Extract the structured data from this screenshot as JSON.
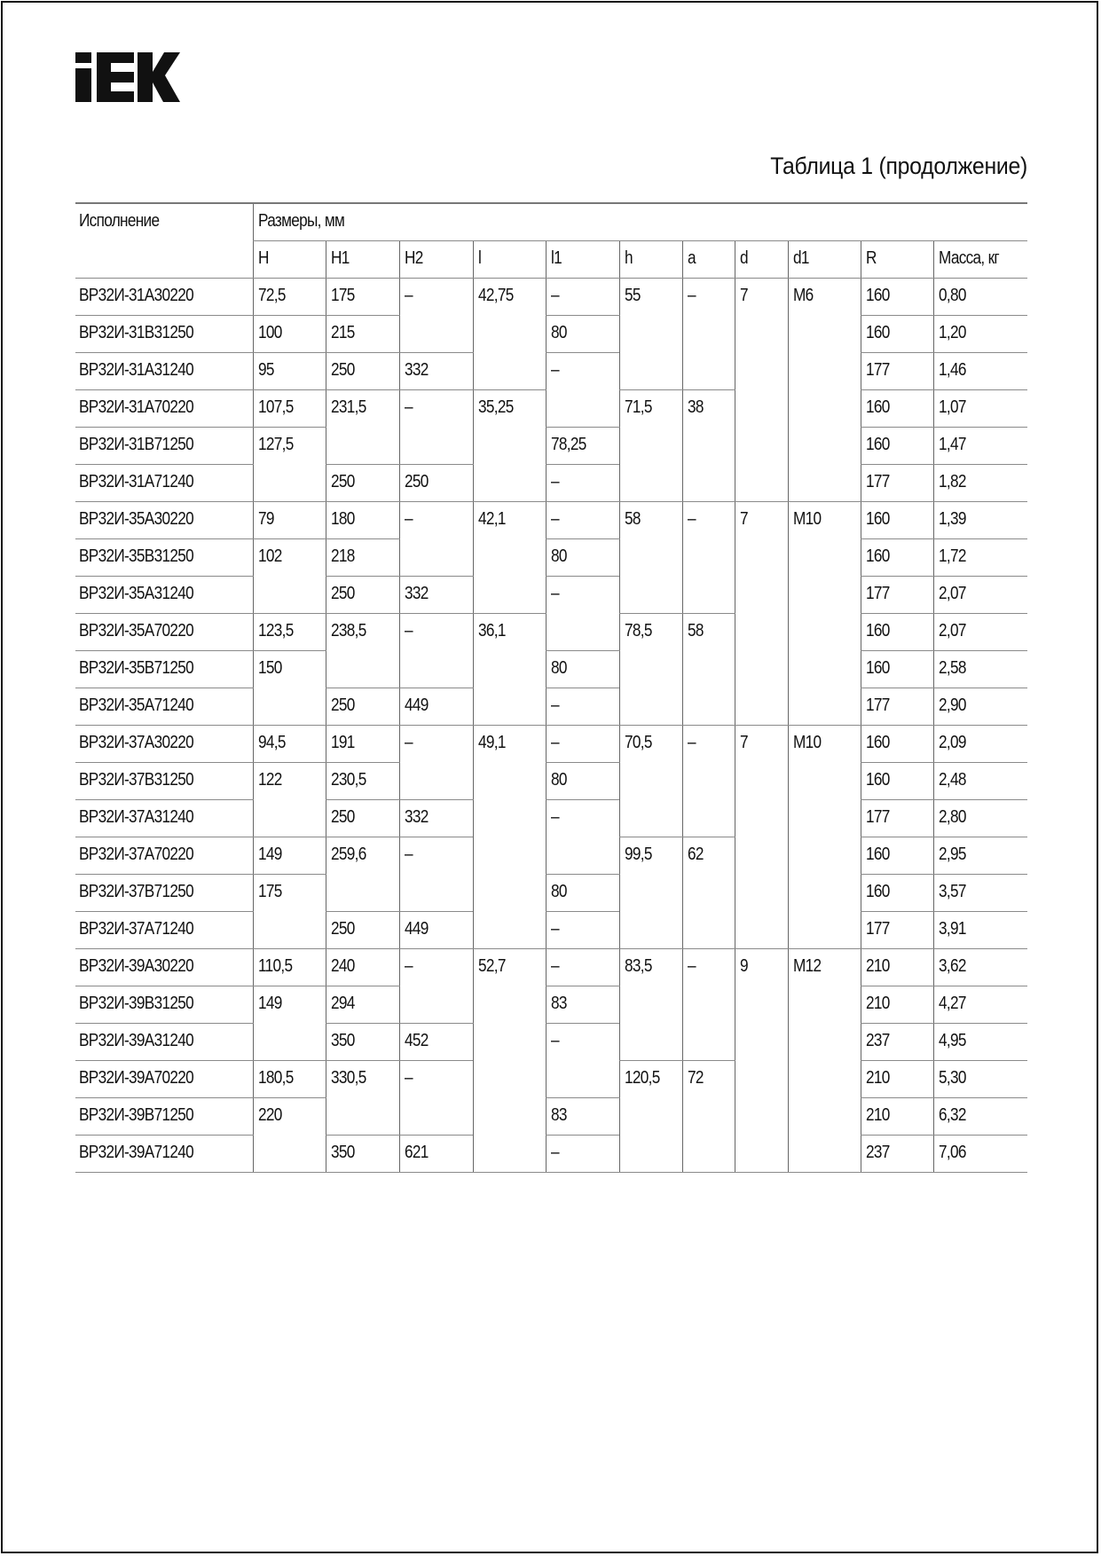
{
  "logo": {
    "text": "IEK"
  },
  "title": "Таблица 1 (продолжение)",
  "table": {
    "header_model": "Исполнение",
    "header_group": "Размеры, мм",
    "columns": [
      "H",
      "H1",
      "H2",
      "l",
      "l1",
      "h",
      "a",
      "d",
      "d1",
      "R",
      "Масса, кг"
    ],
    "rows": [
      [
        "ВР32И-31А30220",
        [
          "72,5",
          1
        ],
        [
          "175",
          1
        ],
        [
          "–",
          2
        ],
        [
          "42,75",
          3
        ],
        [
          "–",
          1
        ],
        [
          "55",
          3
        ],
        [
          "–",
          3
        ],
        [
          "7",
          6
        ],
        [
          "М6",
          6
        ],
        [
          "160",
          1
        ],
        [
          "0,80",
          1
        ]
      ],
      [
        "ВР32И-31В31250",
        [
          "100",
          1
        ],
        [
          "215",
          1
        ],
        [
          "80",
          1
        ],
        [
          "160",
          1
        ],
        [
          "1,20",
          1
        ]
      ],
      [
        "ВР32И-31А31240",
        [
          "95",
          1
        ],
        [
          "250",
          1
        ],
        [
          "332",
          1
        ],
        [
          "–",
          2
        ],
        [
          "177",
          1
        ],
        [
          "1,46",
          1
        ]
      ],
      [
        "ВР32И-31А70220",
        [
          "107,5",
          1
        ],
        [
          "231,5",
          2
        ],
        [
          "–",
          2
        ],
        [
          "35,25",
          3
        ],
        [
          "71,5",
          3
        ],
        [
          "38",
          3
        ],
        [
          "160",
          1
        ],
        [
          "1,07",
          1
        ]
      ],
      [
        "ВР32И-31В71250",
        [
          "127,5",
          2
        ],
        [
          "78,25",
          1
        ],
        [
          "160",
          1
        ],
        [
          "1,47",
          1
        ]
      ],
      [
        "ВР32И-31А71240",
        [
          "250",
          1
        ],
        [
          "250",
          1
        ],
        [
          "–",
          1
        ],
        [
          "177",
          1
        ],
        [
          "1,82",
          1
        ]
      ],
      [
        "ВР32И-35А30220",
        [
          "79",
          1
        ],
        [
          "180",
          1
        ],
        [
          "–",
          2
        ],
        [
          "42,1",
          3
        ],
        [
          "–",
          1
        ],
        [
          "58",
          3
        ],
        [
          "–",
          3
        ],
        [
          "7",
          6
        ],
        [
          "М10",
          6
        ],
        [
          "160",
          1
        ],
        [
          "1,39",
          1
        ]
      ],
      [
        "ВР32И-35В31250",
        [
          "102",
          2
        ],
        [
          "218",
          1
        ],
        [
          "80",
          1
        ],
        [
          "160",
          1
        ],
        [
          "1,72",
          1
        ]
      ],
      [
        "ВР32И-35А31240",
        [
          "250",
          1
        ],
        [
          "332",
          1
        ],
        [
          "–",
          2
        ],
        [
          "177",
          1
        ],
        [
          "2,07",
          1
        ]
      ],
      [
        "ВР32И-35А70220",
        [
          "123,5",
          1
        ],
        [
          "238,5",
          2
        ],
        [
          "–",
          2
        ],
        [
          "36,1",
          3
        ],
        [
          "78,5",
          3
        ],
        [
          "58",
          3
        ],
        [
          "160",
          1
        ],
        [
          "2,07",
          1
        ]
      ],
      [
        "ВР32И-35В71250",
        [
          "150",
          2
        ],
        [
          "80",
          1
        ],
        [
          "160",
          1
        ],
        [
          "2,58",
          1
        ]
      ],
      [
        "ВР32И-35А71240",
        [
          "250",
          1
        ],
        [
          "449",
          1
        ],
        [
          "–",
          1
        ],
        [
          "177",
          1
        ],
        [
          "2,90",
          1
        ]
      ],
      [
        "ВР32И-37А30220",
        [
          "94,5",
          1
        ],
        [
          "191",
          1
        ],
        [
          "–",
          2
        ],
        [
          "49,1",
          6
        ],
        [
          "–",
          1
        ],
        [
          "70,5",
          3
        ],
        [
          "–",
          3
        ],
        [
          "7",
          6
        ],
        [
          "М10",
          6
        ],
        [
          "160",
          1
        ],
        [
          "2,09",
          1
        ]
      ],
      [
        "ВР32И-37В31250",
        [
          "122",
          2
        ],
        [
          "230,5",
          1
        ],
        [
          "80",
          1
        ],
        [
          "160",
          1
        ],
        [
          "2,48",
          1
        ]
      ],
      [
        "ВР32И-37А31240",
        [
          "250",
          1
        ],
        [
          "332",
          1
        ],
        [
          "–",
          2
        ],
        [
          "177",
          1
        ],
        [
          "2,80",
          1
        ]
      ],
      [
        "ВР32И-37А70220",
        [
          "149",
          1
        ],
        [
          "259,6",
          2
        ],
        [
          "–",
          2
        ],
        [
          "99,5",
          3
        ],
        [
          "62",
          3
        ],
        [
          "160",
          1
        ],
        [
          "2,95",
          1
        ]
      ],
      [
        "ВР32И-37В71250",
        [
          "175",
          2
        ],
        [
          "80",
          1
        ],
        [
          "160",
          1
        ],
        [
          "3,57",
          1
        ]
      ],
      [
        "ВР32И-37А71240",
        [
          "250",
          1
        ],
        [
          "449",
          1
        ],
        [
          "–",
          1
        ],
        [
          "177",
          1
        ],
        [
          "3,91",
          1
        ]
      ],
      [
        "ВР32И-39А30220",
        [
          "110,5",
          1
        ],
        [
          "240",
          1
        ],
        [
          "–",
          2
        ],
        [
          "52,7",
          6
        ],
        [
          "–",
          1
        ],
        [
          "83,5",
          3
        ],
        [
          "–",
          3
        ],
        [
          "9",
          6
        ],
        [
          "М12",
          6
        ],
        [
          "210",
          1
        ],
        [
          "3,62",
          1
        ]
      ],
      [
        "ВР32И-39В31250",
        [
          "149",
          2
        ],
        [
          "294",
          1
        ],
        [
          "83",
          1
        ],
        [
          "210",
          1
        ],
        [
          "4,27",
          1
        ]
      ],
      [
        "ВР32И-39А31240",
        [
          "350",
          1
        ],
        [
          "452",
          1
        ],
        [
          "–",
          2
        ],
        [
          "237",
          1
        ],
        [
          "4,95",
          1
        ]
      ],
      [
        "ВР32И-39А70220",
        [
          "180,5",
          1
        ],
        [
          "330,5",
          2
        ],
        [
          "–",
          2
        ],
        [
          "120,5",
          3
        ],
        [
          "72",
          3
        ],
        [
          "210",
          1
        ],
        [
          "5,30",
          1
        ]
      ],
      [
        "ВР32И-39В71250",
        [
          "220",
          2
        ],
        [
          "83",
          1
        ],
        [
          "210",
          1
        ],
        [
          "6,32",
          1
        ]
      ],
      [
        "ВР32И-39А71240",
        [
          "350",
          1
        ],
        [
          "621",
          1
        ],
        [
          "–",
          1
        ],
        [
          "237",
          1
        ],
        [
          "7,06",
          1
        ]
      ]
    ]
  }
}
